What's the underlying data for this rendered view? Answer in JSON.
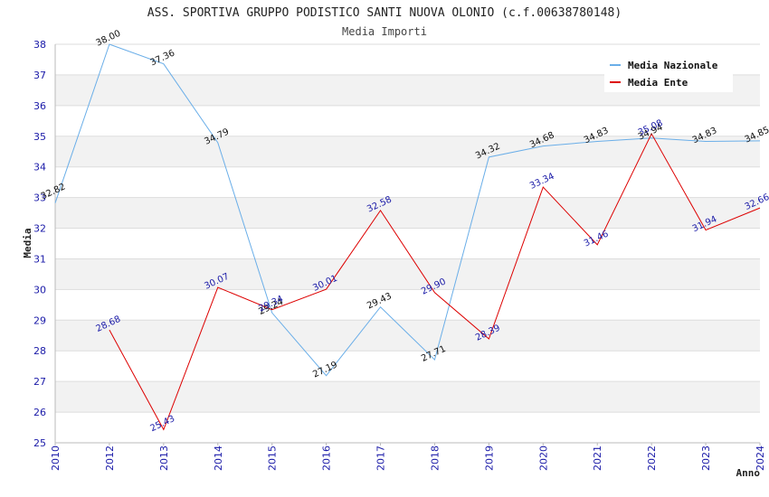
{
  "chart_data": {
    "type": "line",
    "title": "ASS. SPORTIVA GRUPPO PODISTICO SANTI NUOVA OLONIO (c.f.00638780148)",
    "subtitle": "Media Importi",
    "xlabel": "Anno",
    "ylabel": "Media",
    "ylim": [
      25,
      38
    ],
    "yticks": [
      "25",
      "26",
      "27",
      "28",
      "29",
      "30",
      "31",
      "32",
      "33",
      "34",
      "35",
      "36",
      "37",
      "38"
    ],
    "x": [
      "2010",
      "2012",
      "2013",
      "2014",
      "2015",
      "2016",
      "2017",
      "2018",
      "2019",
      "2020",
      "2021",
      "2022",
      "2023",
      "2024"
    ],
    "grid": "horizontal bands",
    "legend_position": "top-right",
    "series": [
      {
        "name": "Media Nazionale",
        "color": "#6aaee8",
        "label_color": "#111111",
        "values": [
          32.82,
          38.0,
          37.36,
          34.79,
          29.24,
          27.19,
          29.43,
          27.71,
          34.32,
          34.68,
          34.83,
          34.94,
          34.83,
          34.85
        ],
        "labels": [
          "32.82",
          "38.00",
          "37.36",
          "34.79",
          "29.24",
          "27.19",
          "29.43",
          "27.71",
          "34.32",
          "34.68",
          "34.83",
          "34.94",
          "34.83",
          "34.85"
        ]
      },
      {
        "name": "Media Ente",
        "color": "#dd0000",
        "label_color": "#1a1aa8",
        "values": [
          null,
          28.68,
          25.43,
          30.07,
          29.34,
          30.01,
          32.58,
          29.9,
          28.39,
          33.34,
          31.46,
          35.08,
          31.94,
          32.66
        ],
        "labels": [
          null,
          "28.68",
          "25.43",
          "30.07",
          "29.34",
          "30.01",
          "32.58",
          "29.90",
          "28.39",
          "33.34",
          "31.46",
          "35.08",
          "31.94",
          "32.66"
        ]
      }
    ]
  }
}
